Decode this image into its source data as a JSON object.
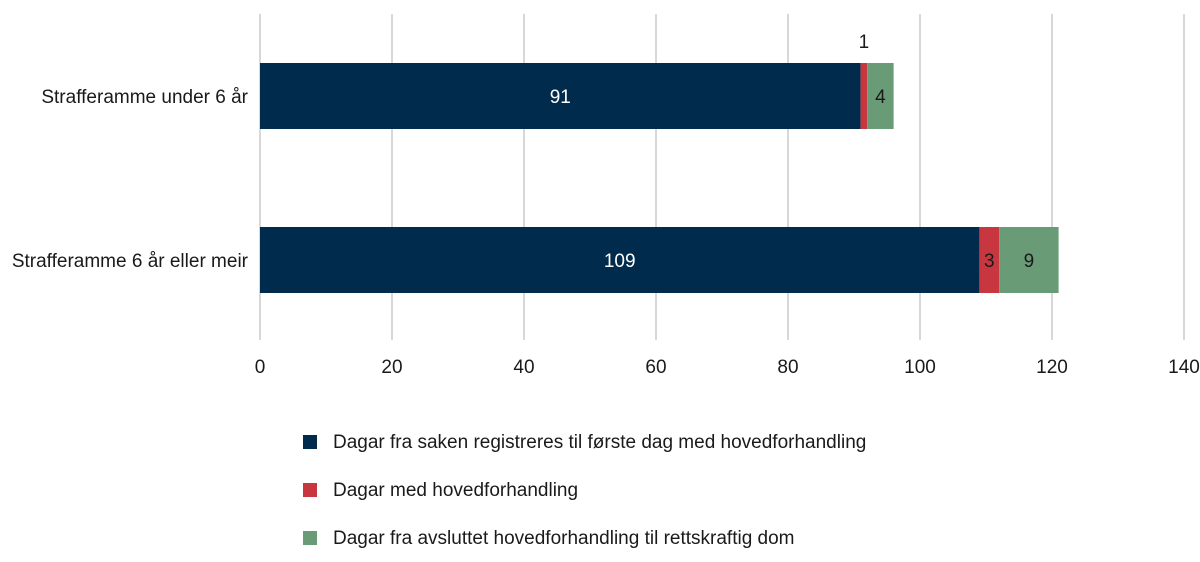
{
  "colors": {
    "dark_blue": "#002b4c",
    "red": "#c8373f",
    "green": "#6a9b77",
    "grid": "#b0b0b0",
    "text": "#1a1a1a"
  },
  "chart_data": {
    "type": "bar",
    "orientation": "horizontal",
    "stacked": true,
    "title": "",
    "xlabel": "",
    "ylabel": "",
    "xlim": [
      0,
      140
    ],
    "xticks": [
      0,
      20,
      40,
      60,
      80,
      100,
      120,
      140
    ],
    "grid": true,
    "legend_position": "bottom",
    "categories": [
      "Strafferamme under 6 år",
      "Strafferamme 6 år eller meir"
    ],
    "series": [
      {
        "name": "Dagar fra saken registreres til første dag med hovedforhandling",
        "color": "#002b4c",
        "label_color": "#ffffff",
        "values": [
          91,
          109
        ],
        "labels": [
          "91",
          "109"
        ]
      },
      {
        "name": "Dagar med hovedforhandling",
        "color": "#c8373f",
        "label_color": "#1a1a1a",
        "values": [
          1,
          3
        ],
        "labels": [
          "1",
          "3"
        ]
      },
      {
        "name": "Dagar fra avsluttet hovedforhandling til rettskraftig dom",
        "color": "#6a9b77",
        "label_color": "#1a1a1a",
        "values": [
          4,
          9
        ],
        "labels": [
          "4",
          "9"
        ]
      }
    ]
  },
  "legend": {
    "items": [
      {
        "label": "Dagar fra saken registreres til første dag med hovedforhandling",
        "color": "#002b4c"
      },
      {
        "label": "Dagar med hovedforhandling",
        "color": "#c8373f"
      },
      {
        "label": "Dagar fra avsluttet hovedforhandling til rettskraftig dom",
        "color": "#6a9b77"
      }
    ]
  }
}
